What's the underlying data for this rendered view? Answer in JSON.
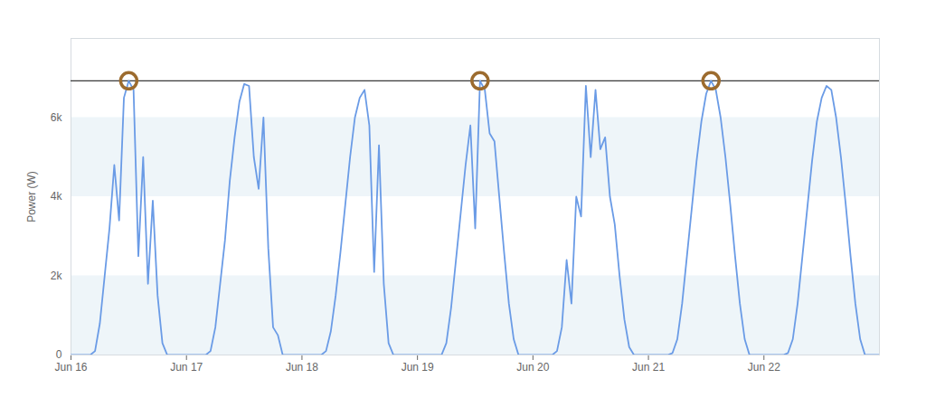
{
  "chart_data": {
    "type": "line",
    "y_label": "Power (W)",
    "x": [
      0,
      1,
      2,
      3,
      4,
      5,
      6,
      7,
      8,
      9,
      10,
      11,
      12,
      13,
      14,
      15,
      16,
      17,
      18,
      19,
      20,
      21,
      22,
      23,
      24,
      25,
      26,
      27,
      28,
      29,
      30,
      31,
      32,
      33,
      34,
      35,
      36,
      37,
      38,
      39,
      40,
      41,
      42,
      43,
      44,
      45,
      46,
      47,
      48,
      49,
      50,
      51,
      52,
      53,
      54,
      55,
      56,
      57,
      58,
      59,
      60,
      61,
      62,
      63,
      64,
      65,
      66,
      67,
      68,
      69,
      70,
      71,
      72,
      73,
      74,
      75,
      76,
      77,
      78,
      79,
      80,
      81,
      82,
      83,
      84,
      85,
      86,
      87,
      88,
      89,
      90,
      91,
      92,
      93,
      94,
      95,
      96,
      97,
      98,
      99,
      100,
      101,
      102,
      103,
      104,
      105,
      106,
      107,
      108,
      109,
      110,
      111,
      112,
      113,
      114,
      115,
      116,
      117,
      118,
      119,
      120,
      121,
      122,
      123,
      124,
      125,
      126,
      127,
      128,
      129,
      130,
      131,
      132,
      133,
      134,
      135,
      136,
      137,
      138,
      139,
      140,
      141,
      142,
      143,
      144,
      145,
      146,
      147,
      148,
      149,
      150,
      151,
      152,
      153,
      154,
      155,
      156,
      157,
      158,
      159,
      160,
      161,
      162,
      163,
      164,
      165,
      166,
      167,
      168
    ],
    "values": [
      0,
      0,
      0,
      0,
      0,
      100,
      800,
      2000,
      3200,
      4800,
      3400,
      6500,
      6930,
      6700,
      2500,
      5000,
      1800,
      3900,
      1500,
      300,
      0,
      0,
      0,
      0,
      0,
      0,
      0,
      0,
      0,
      100,
      700,
      1800,
      2900,
      4400,
      5500,
      6400,
      6850,
      6800,
      5000,
      4200,
      6000,
      2700,
      700,
      500,
      0,
      0,
      0,
      0,
      0,
      0,
      0,
      0,
      0,
      100,
      600,
      1500,
      2600,
      3800,
      5000,
      6000,
      6500,
      6700,
      5800,
      2100,
      5300,
      1800,
      300,
      0,
      0,
      0,
      0,
      0,
      0,
      0,
      0,
      0,
      0,
      0,
      300,
      1200,
      2400,
      3600,
      4800,
      5800,
      3200,
      6930,
      6700,
      5600,
      5400,
      4000,
      2600,
      1300,
      400,
      0,
      0,
      0,
      0,
      0,
      0,
      0,
      0,
      100,
      700,
      2400,
      1300,
      4000,
      3500,
      6800,
      5000,
      6700,
      5200,
      5500,
      4000,
      3300,
      2000,
      900,
      200,
      0,
      0,
      0,
      0,
      0,
      0,
      0,
      0,
      50,
      400,
      1300,
      2500,
      3700,
      4900,
      5900,
      6600,
      6930,
      6700,
      6000,
      5000,
      3800,
      2500,
      1300,
      400,
      0,
      0,
      0,
      0,
      0,
      0,
      0,
      0,
      50,
      400,
      1300,
      2500,
      3700,
      4900,
      5900,
      6500,
      6800,
      6700,
      6000,
      5000,
      3800,
      2500,
      1300,
      400,
      0,
      0,
      0,
      0
    ],
    "color": "#6a9be6",
    "xlim": [
      0,
      168
    ],
    "xticks": [
      {
        "value": 0,
        "label": "Jun 16"
      },
      {
        "value": 24,
        "label": "Jun 17"
      },
      {
        "value": 48,
        "label": "Jun 18"
      },
      {
        "value": 72,
        "label": "Jun 19"
      },
      {
        "value": 96,
        "label": "Jun 20"
      },
      {
        "value": 120,
        "label": "Jun 21"
      },
      {
        "value": 144,
        "label": "Jun 22"
      }
    ],
    "ylim": [
      0,
      8000
    ],
    "yticks": [
      0,
      {
        "value": 2000,
        "label": "2k"
      },
      {
        "value": 4000,
        "label": "4k"
      },
      {
        "value": 6000,
        "label": "6k"
      }
    ],
    "grid": true,
    "threshold": 6930,
    "peak_markers": {
      "x": [
        12,
        85,
        133
      ],
      "y": [
        6930,
        6930,
        6930
      ]
    }
  }
}
